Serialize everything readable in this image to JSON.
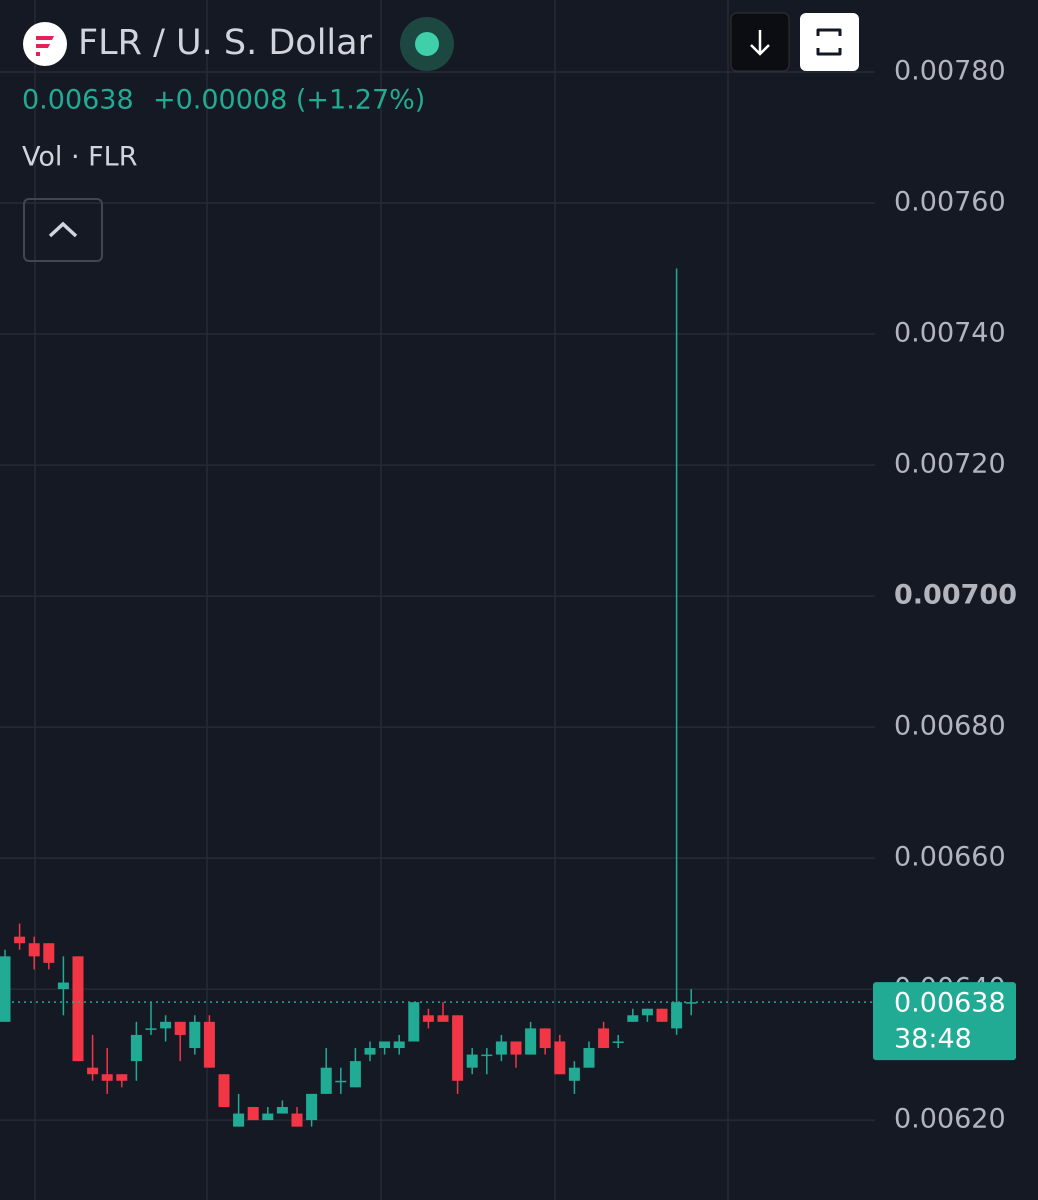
{
  "chart_data": {
    "type": "candlestick",
    "title": "FLR / U. S. Dollar",
    "price_label": "0.00638",
    "change_label": "+0.00008 (+1.27%)",
    "volume_label": "Vol · FLR",
    "up_color": "#22ab94",
    "down_color": "#f23645",
    "open": [
      0.00635,
      0.00648,
      0.00647,
      0.00647,
      0.0064,
      0.00645,
      0.00628,
      0.00627,
      0.00627,
      0.00629,
      0.00634,
      0.00634,
      0.00635,
      0.00631,
      0.00635,
      0.00627,
      0.00619,
      0.00622,
      0.0062,
      0.00621,
      0.00621,
      0.0062,
      0.00624,
      0.00626,
      0.00625,
      0.0063,
      0.00631,
      0.00631,
      0.00632,
      0.00636,
      0.00636,
      0.00636,
      0.00628,
      0.0063,
      0.0063,
      0.00632,
      0.0063,
      0.00634,
      0.00632,
      0.00626,
      0.00628,
      0.00634,
      0.00632,
      0.00635,
      0.00636,
      0.00637,
      0.00634,
      0.00638
    ],
    "high": [
      0.00646,
      0.0065,
      0.00648,
      0.00647,
      0.00645,
      0.00645,
      0.00633,
      0.00631,
      0.00627,
      0.00635,
      0.00638,
      0.00636,
      0.00635,
      0.00636,
      0.00636,
      0.00627,
      0.00624,
      0.00622,
      0.00622,
      0.00623,
      0.00622,
      0.00624,
      0.00631,
      0.00628,
      0.00631,
      0.00632,
      0.00632,
      0.00633,
      0.00638,
      0.00637,
      0.00638,
      0.00636,
      0.00631,
      0.00631,
      0.00633,
      0.00632,
      0.00635,
      0.00634,
      0.00633,
      0.00629,
      0.00632,
      0.00635,
      0.00633,
      0.00637,
      0.00637,
      0.00637,
      0.0075,
      0.0064
    ],
    "low": [
      0.00635,
      0.00646,
      0.00643,
      0.00643,
      0.00636,
      0.00629,
      0.00626,
      0.00624,
      0.00625,
      0.00626,
      0.00633,
      0.00632,
      0.00629,
      0.0063,
      0.00628,
      0.00622,
      0.00619,
      0.0062,
      0.0062,
      0.00621,
      0.00619,
      0.00619,
      0.00624,
      0.00624,
      0.00625,
      0.00629,
      0.0063,
      0.0063,
      0.00632,
      0.00634,
      0.00635,
      0.00624,
      0.00627,
      0.00627,
      0.00629,
      0.00628,
      0.0063,
      0.0063,
      0.00627,
      0.00624,
      0.00628,
      0.00631,
      0.00631,
      0.00635,
      0.00635,
      0.00635,
      0.00633,
      0.00636
    ],
    "close": [
      0.00645,
      0.00647,
      0.00645,
      0.00644,
      0.00641,
      0.00629,
      0.00627,
      0.00626,
      0.00626,
      0.00633,
      0.00634,
      0.00635,
      0.00633,
      0.00635,
      0.00628,
      0.00622,
      0.00621,
      0.0062,
      0.00621,
      0.00622,
      0.00619,
      0.00624,
      0.00628,
      0.00626,
      0.00629,
      0.00631,
      0.00632,
      0.00632,
      0.00638,
      0.00635,
      0.00635,
      0.00626,
      0.0063,
      0.0063,
      0.00632,
      0.0063,
      0.00634,
      0.00631,
      0.00627,
      0.00628,
      0.00631,
      0.00631,
      0.00632,
      0.00636,
      0.00637,
      0.00635,
      0.00638,
      0.00638
    ],
    "ylim": [
      0.006078,
      0.00791
    ],
    "yticks": [
      {
        "value": 0.0078,
        "label": "0.00780"
      },
      {
        "value": 0.0076,
        "label": "0.00760"
      },
      {
        "value": 0.0074,
        "label": "0.00740"
      },
      {
        "value": 0.0072,
        "label": "0.00720"
      },
      {
        "value": 0.007,
        "label": "0.00700",
        "bold": true
      },
      {
        "value": 0.0068,
        "label": "0.00680"
      },
      {
        "value": 0.0066,
        "label": "0.00660"
      },
      {
        "value": 0.0064,
        "label": "0.00640"
      },
      {
        "value": 0.0062,
        "label": "0.00620"
      }
    ],
    "grid": true,
    "last_price": 0.00638,
    "last_price_label": "0.00638",
    "countdown": "38:48"
  }
}
